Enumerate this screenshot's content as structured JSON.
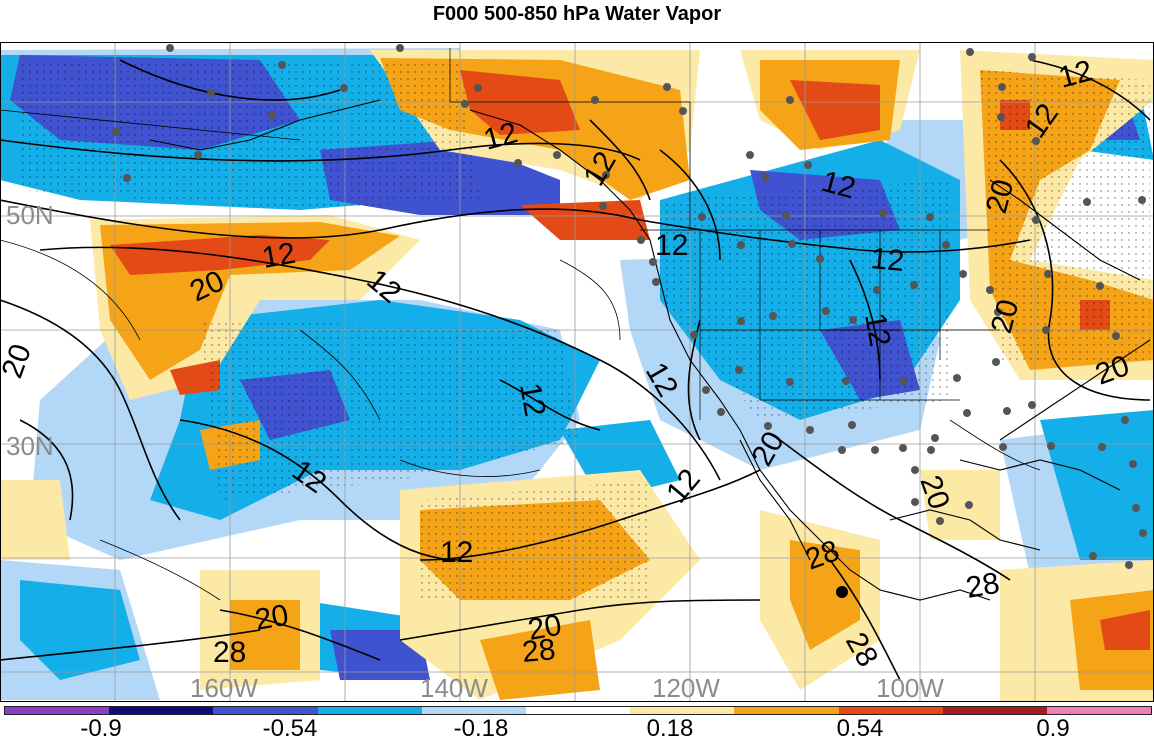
{
  "title": "F000 500-850 hPa Water Vapor",
  "map": {
    "lat_labels": [
      "50N",
      "30N"
    ],
    "lon_labels": [
      "160W",
      "140W",
      "120W",
      "100W"
    ],
    "contour_labels": [
      "12",
      "12",
      "12",
      "12",
      "12",
      "20",
      "12",
      "20",
      "12",
      "12",
      "12",
      "12",
      "20",
      "20",
      "12",
      "12",
      "12",
      "20",
      "12",
      "28",
      "28",
      "20",
      "28",
      "28",
      "20",
      "28",
      "20",
      "20",
      "12"
    ]
  },
  "colorbar": {
    "colors": [
      "#8a3fc8",
      "#0c0c7e",
      "#3f52cf",
      "#14aee8",
      "#b3d8f7",
      "#ffffff",
      "#fde9a6",
      "#f5a417",
      "#e34a16",
      "#a41c1c",
      "#ef7fb5"
    ],
    "tick_labels": [
      "-0.9",
      "-0.54",
      "-0.18",
      "0.18",
      "0.54",
      "0.9"
    ]
  }
}
